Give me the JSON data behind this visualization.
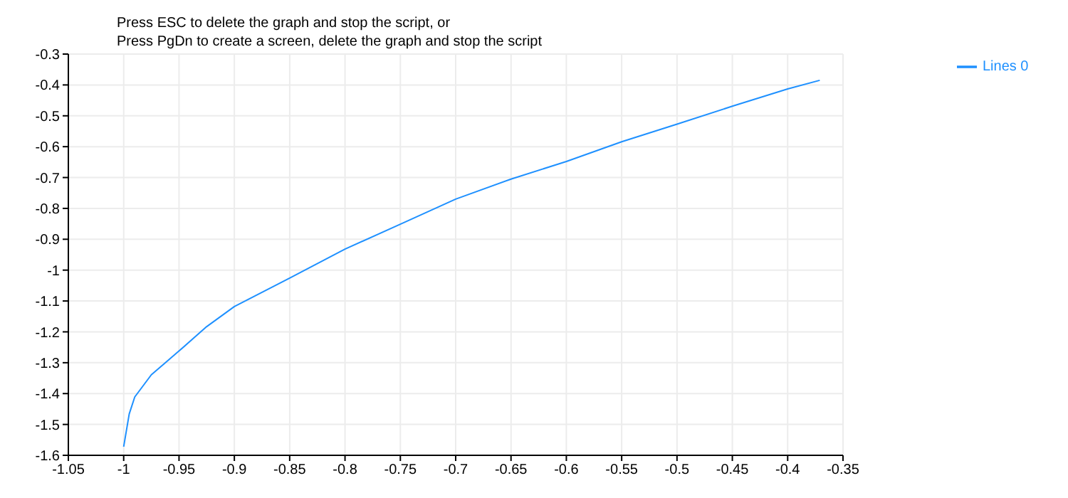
{
  "chart_data": {
    "type": "line",
    "title": "Press ESC to delete the graph and stop the script, or\nPress PgDn to create a screen, delete the graph and stop the script",
    "x": [
      -1,
      -0.995,
      -0.99,
      -0.975,
      -0.95,
      -0.925,
      -0.9,
      -0.85,
      -0.8,
      -0.75,
      -0.7,
      -0.65,
      -0.6,
      -0.55,
      -0.5,
      -0.45,
      -0.4,
      -0.371
    ],
    "series": [
      {
        "name": "Lines 0",
        "color": "#1e90ff",
        "values": [
          -1.572,
          -1.466,
          -1.411,
          -1.339,
          -1.262,
          -1.183,
          -1.118,
          -1.026,
          -0.932,
          -0.851,
          -0.77,
          -0.705,
          -0.648,
          -0.584,
          -0.527,
          -0.469,
          -0.413,
          -0.385
        ]
      }
    ],
    "xlim": [
      -1.05,
      -0.35
    ],
    "xticks": [
      -1.05,
      -1,
      -0.95,
      -0.9,
      -0.85,
      -0.8,
      -0.75,
      -0.7,
      -0.65,
      -0.6,
      -0.55,
      -0.5,
      -0.45,
      -0.4,
      -0.35
    ],
    "ylim": [
      -1.6,
      -0.3
    ],
    "yticks": [
      -1.6,
      -1.5,
      -1.4,
      -1.3,
      -1.2,
      -1.1,
      -1,
      -0.9,
      -0.8,
      -0.7,
      -0.6,
      -0.5,
      -0.4,
      -0.3
    ],
    "grid": true,
    "legend": "top right",
    "marker": "none",
    "line_style": "solid"
  }
}
